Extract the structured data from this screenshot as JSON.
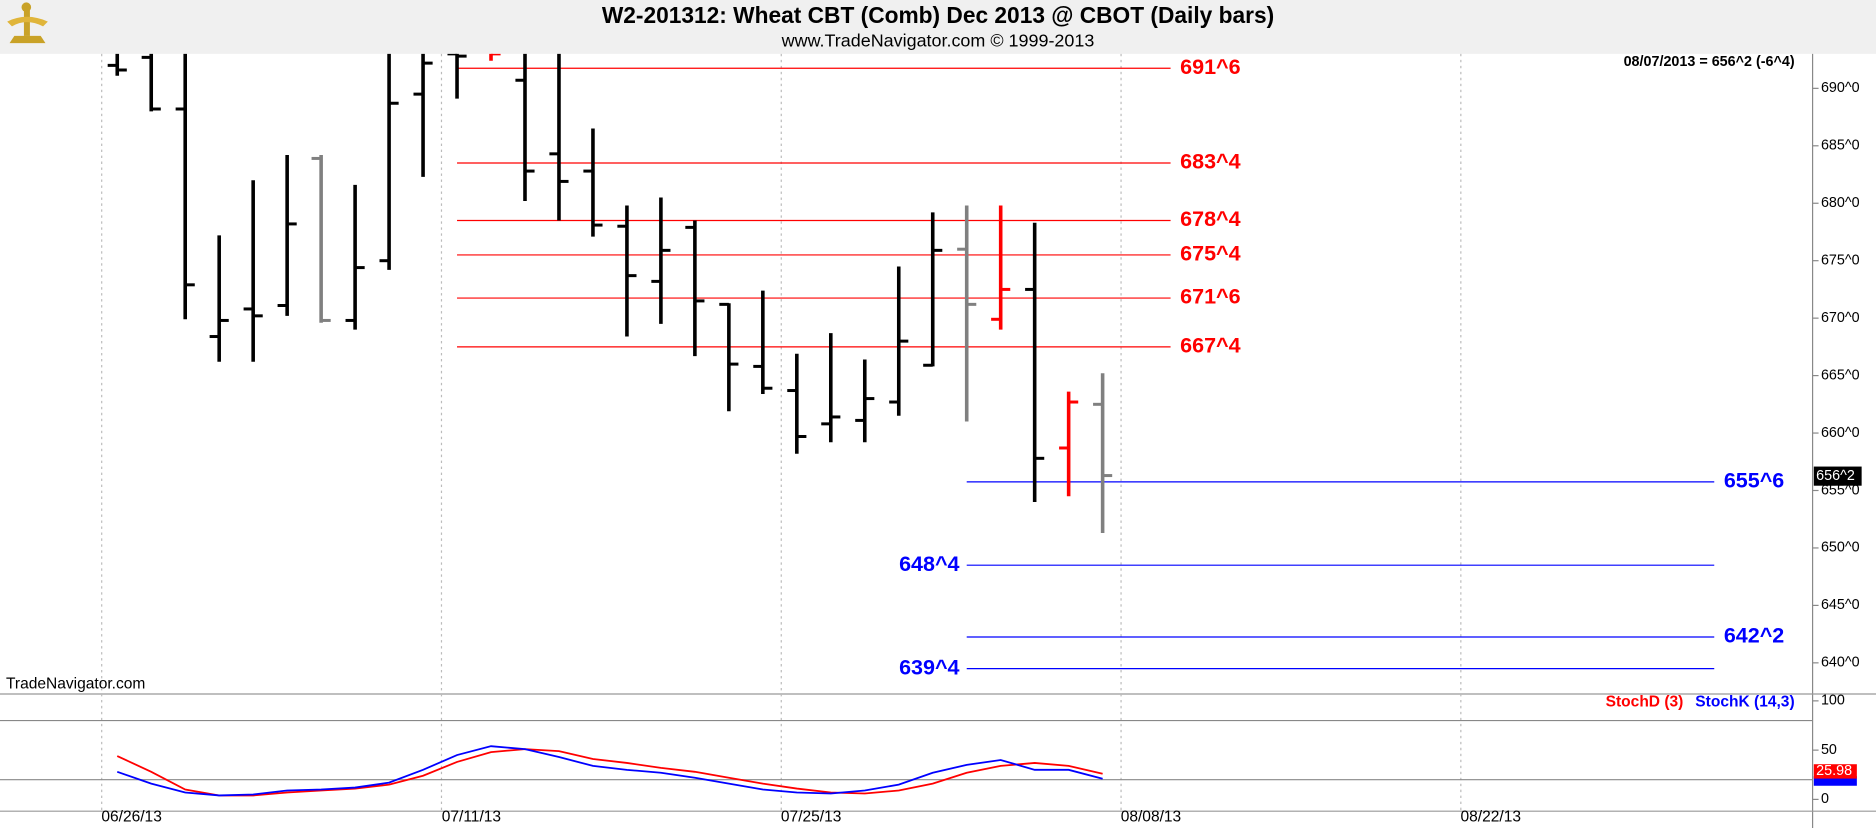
{
  "chart_data": [
    {
      "type": "ohlc",
      "title": "W2-201312:  Wheat CBT (Comb) Dec 2013 @ CBOT  (Daily bars)",
      "subtitle": "www.TradeNavigator.com © 1999-2013",
      "watermark": "TradeNavigator.com",
      "annotation": "08/07/2013 = 656^2 (-6^4)",
      "open": [
        692,
        692.7,
        688.2,
        668.4,
        670.8,
        671.1,
        683.9,
        669.8,
        675.0,
        689.5,
        693.0,
        693.5,
        690.7,
        684.3,
        682.8,
        678.0,
        673.2,
        677.9,
        671.2,
        665.8,
        663.7,
        660.8,
        661.1,
        662.7,
        665.9,
        676.0,
        669.9,
        672.5,
        658.7,
        662.5
      ],
      "high": [
        694,
        694,
        694,
        677.2,
        682.0,
        684.2,
        684.2,
        681.6,
        694,
        694,
        694,
        695,
        694,
        694,
        686.5,
        679.8,
        680.5,
        678.5,
        671.3,
        672.4,
        666.9,
        668.7,
        666.4,
        674.5,
        679.2,
        679.8,
        679.8,
        678.3,
        663.6,
        665.2
      ],
      "low": [
        691.1,
        688.0,
        669.9,
        666.2,
        666.2,
        670.2,
        669.6,
        669.0,
        674.2,
        682.3,
        689.1,
        692.4,
        680.2,
        678.5,
        677.1,
        668.4,
        669.5,
        666.7,
        661.9,
        663.4,
        658.2,
        659.2,
        659.2,
        661.5,
        665.8,
        661.0,
        669.0,
        654.0,
        654.5,
        651.3
      ],
      "close": [
        691.6,
        688.2,
        672.9,
        669.8,
        670.2,
        678.2,
        669.8,
        674.4,
        688.7,
        692.2,
        692.8,
        693.0,
        682.8,
        681.9,
        678.1,
        673.7,
        675.9,
        671.5,
        666.0,
        663.9,
        659.7,
        661.4,
        663.0,
        668.0,
        675.9,
        671.2,
        672.5,
        657.8,
        662.7,
        656.3
      ],
      "colors": [
        "#000000",
        "#000000",
        "#000000",
        "#000000",
        "#000000",
        "#000000",
        "#808080",
        "#000000",
        "#000000",
        "#000000",
        "#000000",
        "#ff0000",
        "#000000",
        "#000000",
        "#000000",
        "#000000",
        "#000000",
        "#000000",
        "#000000",
        "#000000",
        "#000000",
        "#000000",
        "#000000",
        "#000000",
        "#000000",
        "#808080",
        "#ff0000",
        "#000000",
        "#ff0000",
        "#808080"
      ],
      "xticks": [
        "06/26/13",
        "07/11/13",
        "07/25/13",
        "08/08/13",
        "08/22/13"
      ],
      "ylim": [
        637.5,
        693
      ],
      "yticks": [
        {
          "value": 640,
          "label": "640^0"
        },
        {
          "value": 645,
          "label": "645^0"
        },
        {
          "value": 650,
          "label": "650^0"
        },
        {
          "value": 655,
          "label": "655^0"
        },
        {
          "value": 660,
          "label": "660^0"
        },
        {
          "value": 665,
          "label": "665^0"
        },
        {
          "value": 670,
          "label": "670^0"
        },
        {
          "value": 675,
          "label": "675^0"
        },
        {
          "value": 680,
          "label": "680^0"
        },
        {
          "value": 685,
          "label": "685^0"
        },
        {
          "value": 690,
          "label": "690^0"
        }
      ],
      "upper_levels_color": "#ff0000",
      "upper_levels": [
        {
          "value": 691.75,
          "label": "691^6"
        },
        {
          "value": 683.5,
          "label": "683^4"
        },
        {
          "value": 678.5,
          "label": "678^4"
        },
        {
          "value": 675.5,
          "label": "675^4"
        },
        {
          "value": 671.75,
          "label": "671^6"
        },
        {
          "value": 667.5,
          "label": "667^4"
        }
      ],
      "lower_levels_color": "#0000ff",
      "lower_levels": [
        {
          "value": 655.75,
          "label": "655^6"
        },
        {
          "value": 648.5,
          "label": "648^4"
        },
        {
          "value": 642.25,
          "label": "642^2"
        },
        {
          "value": 639.5,
          "label": "639^4"
        }
      ],
      "last_price": {
        "value": 656.25,
        "label": "656^2"
      }
    },
    {
      "type": "line",
      "series": [
        {
          "name": "StochD (3)",
          "color": "#ff0000",
          "values": [
            44,
            28,
            10,
            4,
            4,
            7,
            9,
            11,
            15,
            24,
            38,
            48,
            51,
            49,
            41,
            37,
            32,
            28,
            22,
            16,
            11,
            7,
            6,
            9,
            16,
            27,
            34,
            37,
            34,
            25.98
          ]
        },
        {
          "name": "StochK (14,3)",
          "color": "#0000ff",
          "values": [
            28,
            16,
            7,
            4,
            5,
            9,
            10,
            12,
            17,
            30,
            45,
            54,
            51,
            43,
            34,
            30,
            27,
            22,
            16,
            10,
            7,
            6,
            9,
            15,
            27,
            35,
            40,
            30,
            30,
            21
          ]
        }
      ],
      "ylim": [
        -12,
        107
      ],
      "yticks": [
        0,
        50,
        100
      ],
      "guide_lines": [
        20,
        80
      ]
    }
  ]
}
